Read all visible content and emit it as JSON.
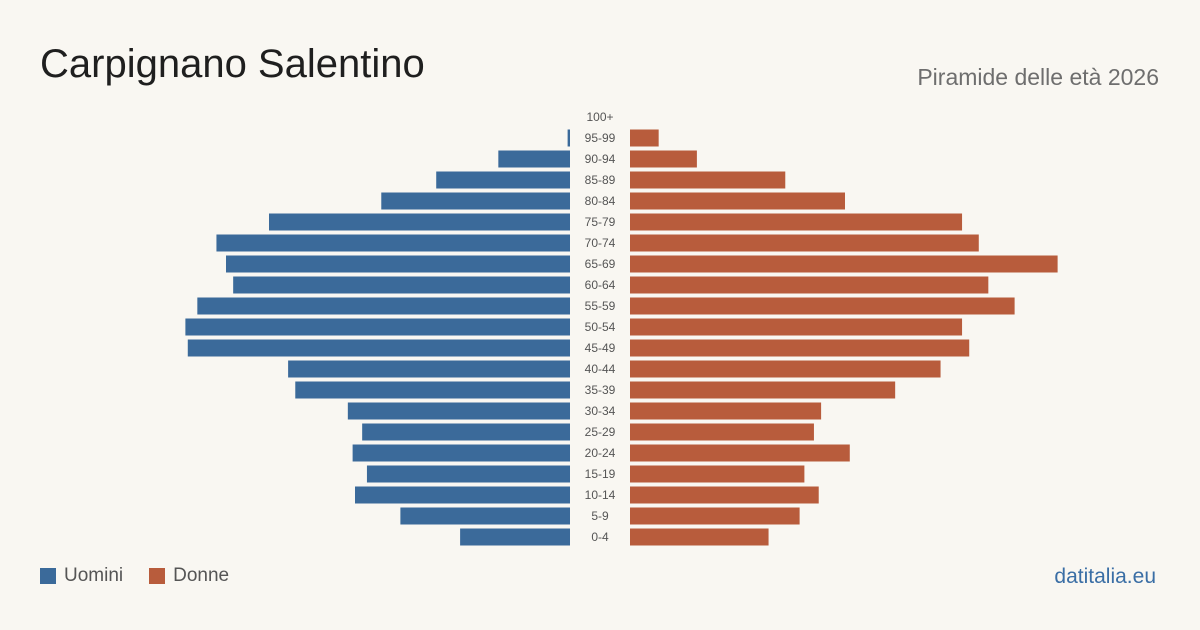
{
  "title": "Carpignano Salentino",
  "subtitle": "Piramide delle età 2026",
  "source": "datitalia.eu",
  "colors": {
    "men": "#3b6a9a",
    "women": "#b85c3c",
    "background": "#f9f7f2",
    "age_label": "#555555",
    "source": "#3a6ea5"
  },
  "chart_data": {
    "type": "bar",
    "orientation": "horizontal-pyramid",
    "categories": [
      "100+",
      "95-99",
      "90-94",
      "85-89",
      "80-84",
      "75-79",
      "70-74",
      "65-69",
      "60-64",
      "55-59",
      "50-54",
      "45-49",
      "40-44",
      "35-39",
      "30-34",
      "25-29",
      "20-24",
      "15-19",
      "10-14",
      "5-9",
      "0-4"
    ],
    "series": [
      {
        "name": "Uomini",
        "values": [
          0,
          1,
          30,
          56,
          79,
          126,
          148,
          144,
          141,
          156,
          161,
          160,
          118,
          115,
          93,
          87,
          91,
          85,
          90,
          71,
          46
        ]
      },
      {
        "name": "Donne",
        "values": [
          0,
          12,
          28,
          65,
          90,
          139,
          146,
          179,
          150,
          161,
          139,
          142,
          130,
          111,
          80,
          77,
          92,
          73,
          79,
          71,
          58
        ]
      }
    ],
    "legend": [
      "Uomini",
      "Donne"
    ],
    "legend_position": "bottom-left",
    "xlim": [
      0,
      180
    ],
    "grid": false
  }
}
